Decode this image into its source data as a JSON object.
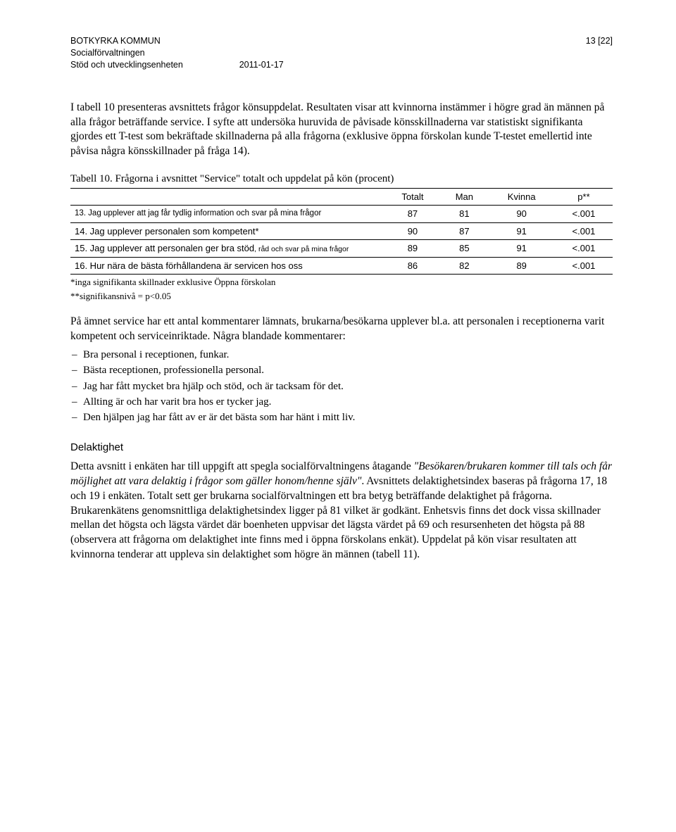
{
  "header": {
    "org": "BOTKYRKA KOMMUN",
    "dept1": "Socialförvaltningen",
    "dept2": "Stöd och utvecklingsenheten",
    "date": "2011-01-17",
    "page": "13 [22]"
  },
  "para1": "I tabell 10 presenteras avsnittets frågor könsuppdelat. Resultaten visar att kvinnorna instämmer i högre grad än männen på alla frågor beträffande service. I syfte att undersöka huruvida de påvisade könsskillnaderna var statistiskt signifikanta gjordes ett T-test som bekräftade skillnaderna på alla frågorna (exklusive öppna förskolan kunde T-testet emellertid inte påvisa några könsskillnader på fråga 14).",
  "table": {
    "caption": "Tabell 10. Frågorna i avsnittet \"Service\" totalt och uppdelat på kön (procent)",
    "columns": [
      "",
      "Totalt",
      "Man",
      "Kvinna",
      "p**"
    ],
    "rows": [
      {
        "label": "13. Jag upplever att jag får tydlig information och svar på mina frågor",
        "totalt": "87",
        "man": "81",
        "kvinna": "90",
        "p": "<.001",
        "class": "row-small"
      },
      {
        "label": "14. Jag upplever personalen som kompetent*",
        "totalt": "90",
        "man": "87",
        "kvinna": "91",
        "p": "<.001",
        "class": ""
      },
      {
        "label_a": "15. Jag upplever att personalen ger bra stöd",
        "label_b": ", råd och svar på mina frågor",
        "totalt": "89",
        "man": "85",
        "kvinna": "91",
        "p": "<.001",
        "class": "row-mixed"
      },
      {
        "label": "16. Hur nära de bästa förhållandena är servicen hos oss",
        "totalt": "86",
        "man": "82",
        "kvinna": "89",
        "p": "<.001",
        "class": ""
      }
    ],
    "footnote1": "*inga signifikanta skillnader exklusive Öppna förskolan",
    "footnote2": "**signifikansnivå = p<0.05"
  },
  "para2_intro": "På ämnet service har ett antal kommentarer lämnats, brukarna/besökarna upplever bl.a. att personalen i receptionerna varit kompetent och serviceinriktade. Några blandade kommentarer:",
  "bullets": [
    "Bra personal i receptionen, funkar.",
    "Bästa receptionen, professionella personal.",
    "Jag har fått mycket bra hjälp och stöd, och är tacksam för det.",
    "Allting är och har varit bra hos er tycker jag.",
    "Den hjälpen jag har fått av er är det bästa som har hänt i mitt liv."
  ],
  "section": {
    "title": "Delaktighet",
    "body_a": "Detta avsnitt i enkäten har till uppgift att spegla socialförvaltningens åtagande ",
    "body_italic": "\"Besökaren/brukaren kommer till tals och får möjlighet att vara delaktig i frågor som gäller honom/henne själv\"",
    "body_b": ". Avsnittets delaktighetsindex baseras på frågorna 17, 18 och 19 i enkäten. Totalt sett ger brukarna socialförvaltningen ett bra betyg beträffande delaktighet på frågorna. Brukarenkätens genomsnittliga delaktighetsindex ligger på 81 vilket är godkänt. Enhetsvis finns det dock vissa skillnader mellan det högsta och lägsta värdet där boenheten uppvisar det lägsta värdet på 69 och resursenheten det högsta på 88 (observera att frågorna om delaktighet inte finns med i öppna förskolans enkät). Uppdelat på kön visar resultaten att kvinnorna tenderar att uppleva sin delaktighet som högre än männen (tabell 11)."
  }
}
